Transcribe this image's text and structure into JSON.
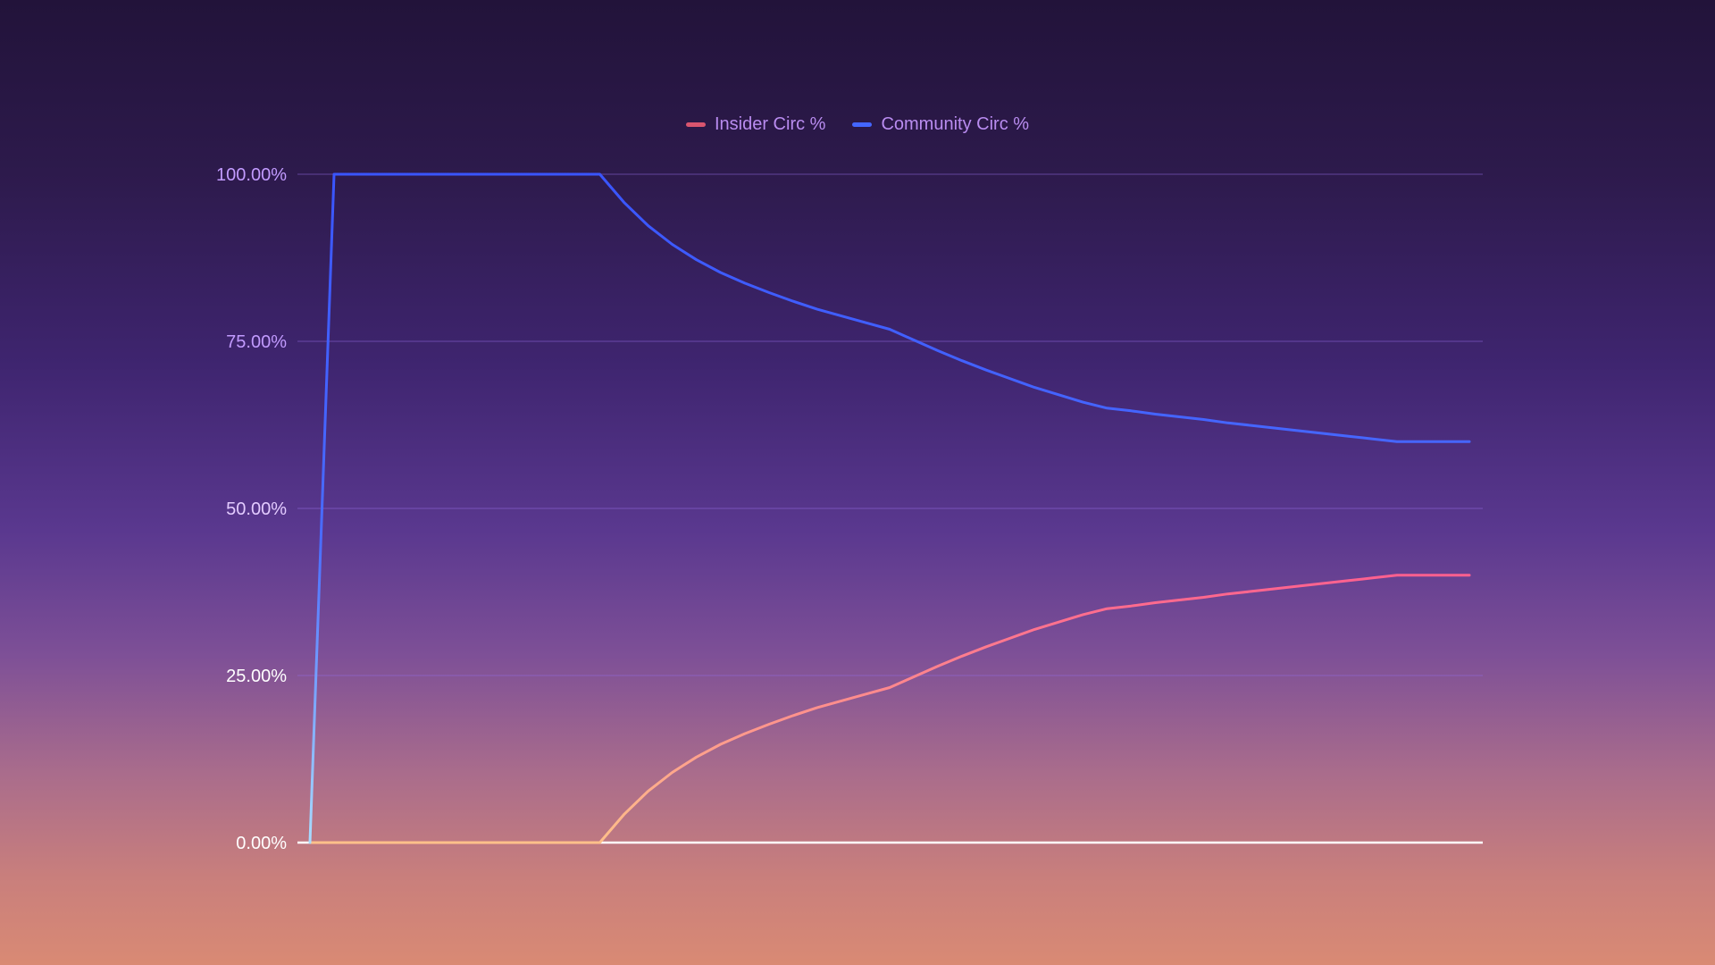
{
  "chart_data": {
    "type": "line",
    "title": "",
    "xlabel": "",
    "ylabel": "",
    "ylim": [
      0,
      100
    ],
    "yticks": [
      "0.00%",
      "25.00%",
      "50.00%",
      "75.00%",
      "100.00%"
    ],
    "grid": true,
    "legend_position": "top-center",
    "x": [
      0,
      1,
      2,
      3,
      4,
      5,
      6,
      7,
      8,
      9,
      10,
      11,
      12,
      13,
      14,
      15,
      16,
      17,
      18,
      19,
      20,
      21,
      22,
      23,
      24,
      25,
      26,
      27,
      28,
      29,
      30,
      31,
      32,
      33,
      34,
      35,
      36,
      37,
      38,
      39,
      40,
      41,
      42,
      43,
      44,
      45,
      46,
      47,
      48
    ],
    "series": [
      {
        "name": "Insider Circ %",
        "color": "#ff6f91",
        "values": [
          0,
          0,
          0,
          0,
          0,
          0,
          0,
          0,
          0,
          0,
          0,
          0,
          0,
          4.2,
          7.7,
          10.5,
          12.8,
          14.7,
          16.3,
          17.7,
          19.0,
          20.2,
          21.2,
          22.2,
          23.2,
          24.8,
          26.4,
          27.9,
          29.3,
          30.6,
          31.9,
          33.0,
          34.1,
          35.0,
          35.4,
          35.9,
          36.3,
          36.7,
          37.2,
          37.6,
          38.0,
          38.4,
          38.8,
          39.2,
          39.6,
          40.0,
          40.0,
          40.0,
          40.0
        ]
      },
      {
        "name": "Community Circ %",
        "color": "#3d5bff",
        "values": [
          0,
          100,
          100,
          100,
          100,
          100,
          100,
          100,
          100,
          100,
          100,
          100,
          100,
          95.8,
          92.3,
          89.5,
          87.2,
          85.3,
          83.7,
          82.3,
          81.0,
          79.8,
          78.8,
          77.8,
          76.8,
          75.2,
          73.6,
          72.1,
          70.7,
          69.4,
          68.1,
          67.0,
          65.9,
          65.0,
          64.6,
          64.1,
          63.7,
          63.3,
          62.8,
          62.4,
          62.0,
          61.6,
          61.2,
          60.8,
          60.4,
          60.0,
          60.0,
          60.0,
          60.0
        ]
      }
    ]
  }
}
